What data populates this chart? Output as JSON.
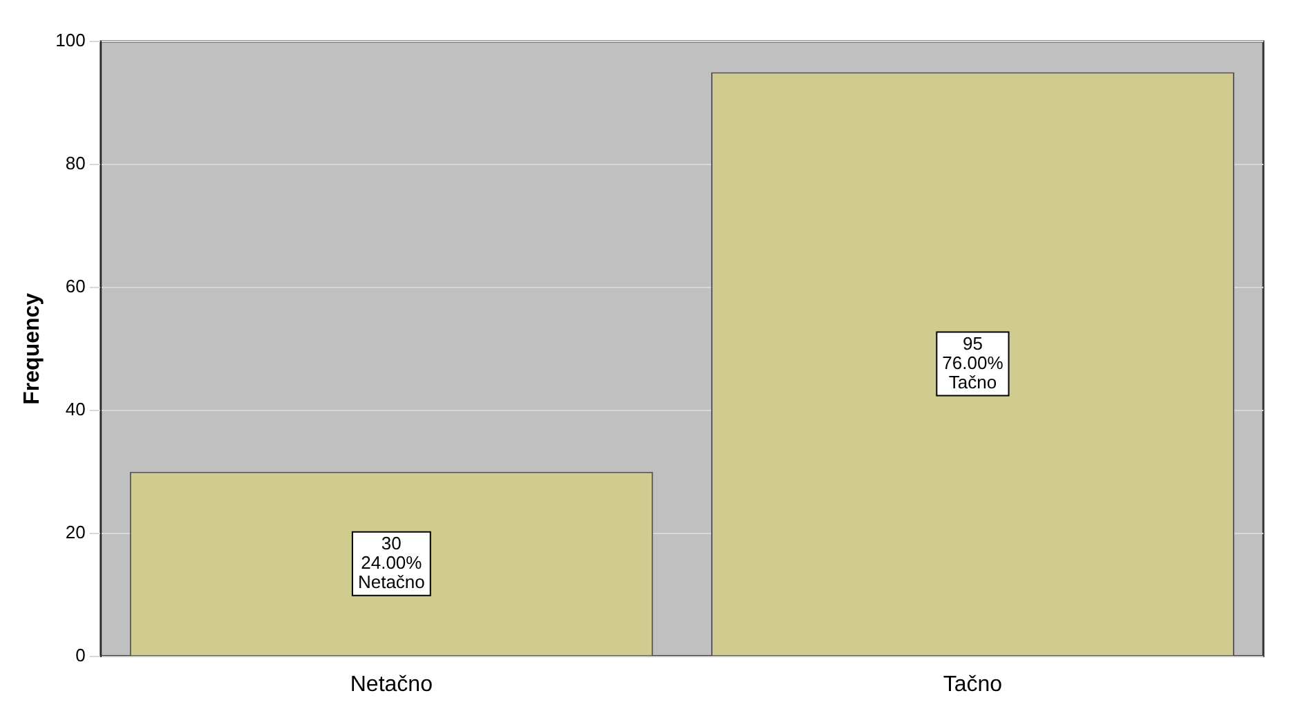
{
  "chart_data": {
    "type": "bar",
    "ylabel": "Frequency",
    "categories": [
      "Netačno",
      "Tačno"
    ],
    "values": [
      30,
      95
    ],
    "color": "#d0cb8e",
    "value_labels": [
      "30\n24.00%\nNetačno",
      "95\n76.00%\nTačno"
    ],
    "ylim": [
      0,
      100
    ],
    "yticks": [
      0,
      20,
      40,
      60,
      80,
      100
    ],
    "grid": "y",
    "legend": false
  }
}
